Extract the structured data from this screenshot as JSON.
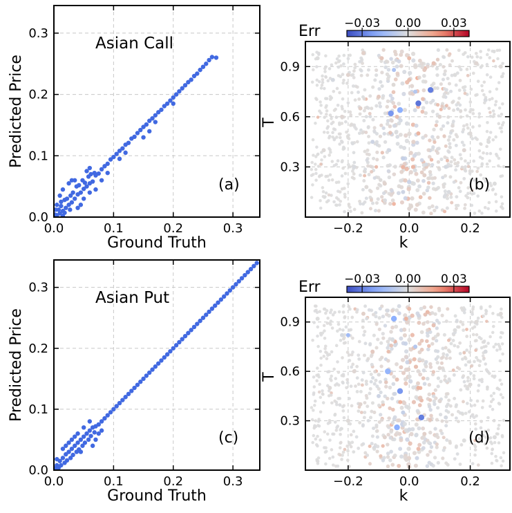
{
  "figure": {
    "colormap": "coolwarm",
    "scatter_color": "#4169e1"
  },
  "chart_data": [
    {
      "id": "a",
      "type": "scatter",
      "title": "Asian Call",
      "panel_label": "(a)",
      "xlabel": "Ground Truth",
      "ylabel": "Predicted Price",
      "xlim": [
        0.0,
        0.345
      ],
      "ylim": [
        0.0,
        0.345
      ],
      "xticks": [
        0.0,
        0.1,
        0.2,
        0.3
      ],
      "yticks": [
        0.0,
        0.1,
        0.2,
        0.3
      ],
      "xtick_labels": [
        "0.0",
        "0.1",
        "0.2",
        "0.3"
      ],
      "ytick_labels": [
        "0.0",
        "0.1",
        "0.2",
        "0.3"
      ],
      "grid": true,
      "color": "#4169e1",
      "points": [
        [
          0.002,
          0.004
        ],
        [
          0.005,
          0.003
        ],
        [
          0.008,
          0.012
        ],
        [
          0.01,
          0.006
        ],
        [
          0.012,
          0.018
        ],
        [
          0.015,
          0.01
        ],
        [
          0.018,
          0.028
        ],
        [
          0.02,
          0.015
        ],
        [
          0.022,
          0.03
        ],
        [
          0.025,
          0.02
        ],
        [
          0.028,
          0.035
        ],
        [
          0.03,
          0.024
        ],
        [
          0.032,
          0.04
        ],
        [
          0.035,
          0.03
        ],
        [
          0.038,
          0.05
        ],
        [
          0.04,
          0.037
        ],
        [
          0.042,
          0.052
        ],
        [
          0.045,
          0.04
        ],
        [
          0.048,
          0.06
        ],
        [
          0.05,
          0.046
        ],
        [
          0.052,
          0.056
        ],
        [
          0.055,
          0.05
        ],
        [
          0.058,
          0.066
        ],
        [
          0.06,
          0.055
        ],
        [
          0.062,
          0.07
        ],
        [
          0.065,
          0.058
        ],
        [
          0.068,
          0.072
        ],
        [
          0.07,
          0.068
        ],
        [
          0.075,
          0.071
        ],
        [
          0.08,
          0.078
        ],
        [
          0.085,
          0.083
        ],
        [
          0.09,
          0.087
        ],
        [
          0.095,
          0.094
        ],
        [
          0.1,
          0.098
        ],
        [
          0.105,
          0.103
        ],
        [
          0.11,
          0.108
        ],
        [
          0.115,
          0.112
        ],
        [
          0.12,
          0.118
        ],
        [
          0.125,
          0.121
        ],
        [
          0.13,
          0.128
        ],
        [
          0.135,
          0.131
        ],
        [
          0.14,
          0.137
        ],
        [
          0.145,
          0.142
        ],
        [
          0.15,
          0.147
        ],
        [
          0.155,
          0.151
        ],
        [
          0.16,
          0.157
        ],
        [
          0.165,
          0.161
        ],
        [
          0.17,
          0.166
        ],
        [
          0.175,
          0.171
        ],
        [
          0.18,
          0.175
        ],
        [
          0.185,
          0.181
        ],
        [
          0.19,
          0.185
        ],
        [
          0.195,
          0.19
        ],
        [
          0.2,
          0.195
        ],
        [
          0.205,
          0.2
        ],
        [
          0.21,
          0.205
        ],
        [
          0.215,
          0.21
        ],
        [
          0.22,
          0.215
        ],
        [
          0.225,
          0.22
        ],
        [
          0.23,
          0.224
        ],
        [
          0.235,
          0.23
        ],
        [
          0.24,
          0.234
        ],
        [
          0.245,
          0.24
        ],
        [
          0.25,
          0.245
        ],
        [
          0.255,
          0.25
        ],
        [
          0.26,
          0.256
        ],
        [
          0.265,
          0.261
        ],
        [
          0.272,
          0.26
        ],
        [
          0.05,
          0.03
        ],
        [
          0.06,
          0.04
        ],
        [
          0.07,
          0.045
        ],
        [
          0.08,
          0.06
        ],
        [
          0.09,
          0.072
        ],
        [
          0.16,
          0.14
        ],
        [
          0.15,
          0.13
        ],
        [
          0.12,
          0.105
        ],
        [
          0.03,
          0.06
        ],
        [
          0.015,
          0.045
        ],
        [
          0.01,
          0.035
        ],
        [
          0.04,
          0.015
        ],
        [
          0.025,
          0.055
        ],
        [
          0.035,
          0.06
        ],
        [
          0.055,
          0.075
        ],
        [
          0.11,
          0.095
        ],
        [
          0.17,
          0.155
        ],
        [
          0.2,
          0.185
        ],
        [
          0.06,
          0.08
        ],
        [
          0.045,
          0.02
        ],
        [
          0.015,
          0.002
        ],
        [
          0.005,
          0.02
        ],
        [
          0.003,
          0.012
        ],
        [
          0.018,
          0.007
        ],
        [
          0.027,
          0.012
        ],
        [
          0.012,
          0.025
        ]
      ]
    },
    {
      "id": "b",
      "type": "scatter",
      "panel_label": "(b)",
      "xlabel": "k",
      "ylabel": "T",
      "xlim": [
        -0.34,
        0.33
      ],
      "ylim": [
        0.0,
        1.05
      ],
      "xticks": [
        -0.2,
        0.0,
        0.2
      ],
      "yticks": [
        0.3,
        0.6,
        0.9
      ],
      "xtick_labels": [
        "−0.2",
        "0.0",
        "0.2"
      ],
      "ytick_labels": [
        "0.3",
        "0.6",
        "0.9"
      ],
      "grid": true,
      "colorbar": {
        "label": "Err",
        "vmin": -0.04,
        "vmax": 0.04,
        "ticks": [
          -0.03,
          0.0,
          0.03
        ],
        "tick_labels": [
          "−0.03",
          "0.00",
          "0.03"
        ]
      },
      "points": [
        [
          -0.3,
          0.95,
          0.0
        ],
        [
          -0.25,
          0.82,
          -0.002
        ],
        [
          -0.28,
          0.4,
          0.001
        ],
        [
          -0.22,
          0.6,
          0.002
        ],
        [
          -0.18,
          0.3,
          -0.001
        ],
        [
          -0.15,
          0.98,
          0.004
        ],
        [
          -0.1,
          0.72,
          0.006
        ],
        [
          -0.12,
          0.45,
          -0.004
        ],
        [
          -0.08,
          0.2,
          0.003
        ],
        [
          -0.05,
          0.88,
          -0.012
        ],
        [
          -0.04,
          0.6,
          0.008
        ],
        [
          -0.02,
          0.35,
          -0.006
        ],
        [
          0.0,
          0.95,
          0.01
        ],
        [
          0.02,
          0.75,
          -0.01
        ],
        [
          0.03,
          0.5,
          0.012
        ],
        [
          0.05,
          0.25,
          0.004
        ],
        [
          0.08,
          0.92,
          0.008
        ],
        [
          0.1,
          0.6,
          0.002
        ],
        [
          0.12,
          0.3,
          -0.002
        ],
        [
          0.15,
          0.85,
          0.0
        ],
        [
          0.2,
          0.5,
          0.001
        ],
        [
          0.25,
          0.7,
          -0.001
        ],
        [
          0.28,
          0.2,
          0.0
        ],
        [
          0.3,
          0.9,
          0.001
        ],
        [
          -0.06,
          0.62,
          -0.025
        ],
        [
          -0.03,
          0.64,
          -0.02
        ],
        [
          0.03,
          0.68,
          -0.032
        ],
        [
          0.07,
          0.76,
          -0.03
        ],
        [
          -0.14,
          0.18,
          0.001
        ],
        [
          0.18,
          0.4,
          0.002
        ],
        [
          -0.2,
          0.85,
          0.003
        ],
        [
          0.22,
          0.92,
          0.002
        ],
        [
          -0.09,
          0.95,
          0.007
        ],
        [
          0.0,
          0.82,
          0.009
        ],
        [
          0.05,
          0.88,
          0.006
        ],
        [
          -0.02,
          0.15,
          -0.004
        ],
        [
          0.0,
          0.05,
          0.002
        ],
        [
          -0.16,
          0.65,
          0.004
        ],
        [
          0.13,
          0.15,
          -0.001
        ],
        [
          0.26,
          0.45,
          0.0
        ]
      ]
    },
    {
      "id": "c",
      "type": "scatter",
      "title": "Asian Put",
      "panel_label": "(c)",
      "xlabel": "Ground Truth",
      "ylabel": "Predicted Price",
      "xlim": [
        0.0,
        0.345
      ],
      "ylim": [
        0.0,
        0.345
      ],
      "xticks": [
        0.0,
        0.1,
        0.2,
        0.3
      ],
      "yticks": [
        0.0,
        0.1,
        0.2,
        0.3
      ],
      "xtick_labels": [
        "0.0",
        "0.1",
        "0.2",
        "0.3"
      ],
      "ytick_labels": [
        "0.0",
        "0.1",
        "0.2",
        "0.3"
      ],
      "grid": true,
      "color": "#4169e1",
      "points": [
        [
          0.002,
          0.003
        ],
        [
          0.005,
          0.008
        ],
        [
          0.008,
          0.004
        ],
        [
          0.01,
          0.015
        ],
        [
          0.012,
          0.008
        ],
        [
          0.015,
          0.02
        ],
        [
          0.018,
          0.012
        ],
        [
          0.02,
          0.026
        ],
        [
          0.022,
          0.016
        ],
        [
          0.025,
          0.03
        ],
        [
          0.028,
          0.02
        ],
        [
          0.03,
          0.035
        ],
        [
          0.032,
          0.025
        ],
        [
          0.035,
          0.04
        ],
        [
          0.038,
          0.03
        ],
        [
          0.04,
          0.045
        ],
        [
          0.042,
          0.034
        ],
        [
          0.045,
          0.05
        ],
        [
          0.048,
          0.04
        ],
        [
          0.05,
          0.055
        ],
        [
          0.052,
          0.045
        ],
        [
          0.055,
          0.06
        ],
        [
          0.058,
          0.05
        ],
        [
          0.06,
          0.065
        ],
        [
          0.062,
          0.056
        ],
        [
          0.065,
          0.07
        ],
        [
          0.068,
          0.062
        ],
        [
          0.07,
          0.072
        ],
        [
          0.075,
          0.075
        ],
        [
          0.08,
          0.08
        ],
        [
          0.085,
          0.085
        ],
        [
          0.09,
          0.09
        ],
        [
          0.095,
          0.095
        ],
        [
          0.1,
          0.1
        ],
        [
          0.105,
          0.105
        ],
        [
          0.11,
          0.11
        ],
        [
          0.115,
          0.115
        ],
        [
          0.12,
          0.12
        ],
        [
          0.125,
          0.125
        ],
        [
          0.13,
          0.13
        ],
        [
          0.135,
          0.135
        ],
        [
          0.14,
          0.14
        ],
        [
          0.145,
          0.145
        ],
        [
          0.15,
          0.15
        ],
        [
          0.155,
          0.155
        ],
        [
          0.16,
          0.16
        ],
        [
          0.165,
          0.165
        ],
        [
          0.17,
          0.17
        ],
        [
          0.175,
          0.175
        ],
        [
          0.18,
          0.18
        ],
        [
          0.185,
          0.185
        ],
        [
          0.19,
          0.19
        ],
        [
          0.195,
          0.195
        ],
        [
          0.2,
          0.2
        ],
        [
          0.205,
          0.205
        ],
        [
          0.21,
          0.21
        ],
        [
          0.215,
          0.215
        ],
        [
          0.22,
          0.22
        ],
        [
          0.225,
          0.225
        ],
        [
          0.23,
          0.23
        ],
        [
          0.235,
          0.235
        ],
        [
          0.24,
          0.24
        ],
        [
          0.245,
          0.245
        ],
        [
          0.25,
          0.25
        ],
        [
          0.255,
          0.255
        ],
        [
          0.26,
          0.26
        ],
        [
          0.265,
          0.265
        ],
        [
          0.27,
          0.27
        ],
        [
          0.275,
          0.275
        ],
        [
          0.28,
          0.28
        ],
        [
          0.285,
          0.285
        ],
        [
          0.29,
          0.29
        ],
        [
          0.295,
          0.295
        ],
        [
          0.3,
          0.3
        ],
        [
          0.305,
          0.305
        ],
        [
          0.31,
          0.31
        ],
        [
          0.315,
          0.315
        ],
        [
          0.32,
          0.32
        ],
        [
          0.325,
          0.325
        ],
        [
          0.33,
          0.33
        ],
        [
          0.335,
          0.335
        ],
        [
          0.34,
          0.34
        ],
        [
          0.06,
          0.08
        ],
        [
          0.05,
          0.07
        ],
        [
          0.04,
          0.06
        ],
        [
          0.07,
          0.05
        ],
        [
          0.065,
          0.04
        ],
        [
          0.03,
          0.05
        ],
        [
          0.02,
          0.04
        ],
        [
          0.015,
          0.035
        ],
        [
          0.005,
          0.018
        ],
        [
          0.045,
          0.03
        ],
        [
          0.075,
          0.06
        ],
        [
          0.08,
          0.065
        ],
        [
          0.035,
          0.055
        ],
        [
          0.025,
          0.045
        ]
      ]
    },
    {
      "id": "d",
      "type": "scatter",
      "panel_label": "(d)",
      "xlabel": "k",
      "ylabel": "T",
      "xlim": [
        -0.34,
        0.33
      ],
      "ylim": [
        0.0,
        1.05
      ],
      "xticks": [
        -0.2,
        0.0,
        0.2
      ],
      "yticks": [
        0.3,
        0.6,
        0.9
      ],
      "xtick_labels": [
        "−0.2",
        "0.0",
        "0.2"
      ],
      "ytick_labels": [
        "0.3",
        "0.6",
        "0.9"
      ],
      "grid": true,
      "colorbar": {
        "label": "Err",
        "vmin": -0.04,
        "vmax": 0.04,
        "ticks": [
          -0.03,
          0.0,
          0.03
        ],
        "tick_labels": [
          "−0.03",
          "0.00",
          "0.03"
        ]
      },
      "points": [
        [
          -0.3,
          0.92,
          0.0
        ],
        [
          -0.26,
          0.5,
          0.001
        ],
        [
          -0.22,
          0.82,
          -0.002
        ],
        [
          -0.2,
          0.3,
          0.001
        ],
        [
          -0.18,
          0.6,
          0.002
        ],
        [
          -0.15,
          0.95,
          0.004
        ],
        [
          -0.12,
          0.72,
          0.006
        ],
        [
          -0.1,
          0.45,
          -0.004
        ],
        [
          -0.08,
          0.2,
          0.003
        ],
        [
          -0.05,
          0.92,
          -0.02
        ],
        [
          -0.04,
          0.55,
          0.008
        ],
        [
          -0.02,
          0.35,
          -0.006
        ],
        [
          0.0,
          0.98,
          0.01
        ],
        [
          0.02,
          0.75,
          -0.01
        ],
        [
          0.03,
          0.5,
          0.012
        ],
        [
          0.05,
          0.22,
          0.004
        ],
        [
          0.08,
          0.88,
          0.008
        ],
        [
          0.1,
          0.62,
          0.002
        ],
        [
          0.12,
          0.32,
          -0.002
        ],
        [
          0.15,
          0.85,
          0.0
        ],
        [
          0.2,
          0.52,
          0.001
        ],
        [
          0.25,
          0.72,
          -0.001
        ],
        [
          0.28,
          0.2,
          0.0
        ],
        [
          0.3,
          0.95,
          0.001
        ],
        [
          -0.03,
          0.48,
          -0.025
        ],
        [
          0.04,
          0.32,
          -0.03
        ],
        [
          -0.07,
          0.6,
          -0.018
        ],
        [
          -0.2,
          0.82,
          -0.015
        ],
        [
          -0.01,
          0.92,
          0.012
        ],
        [
          0.06,
          0.96,
          0.01
        ],
        [
          0.0,
          0.02,
          0.004
        ],
        [
          -0.04,
          0.26,
          -0.02
        ],
        [
          0.1,
          0.42,
          0.002
        ],
        [
          -0.16,
          0.4,
          0.003
        ],
        [
          0.18,
          0.18,
          0.0
        ],
        [
          0.22,
          0.9,
          0.001
        ]
      ]
    }
  ]
}
